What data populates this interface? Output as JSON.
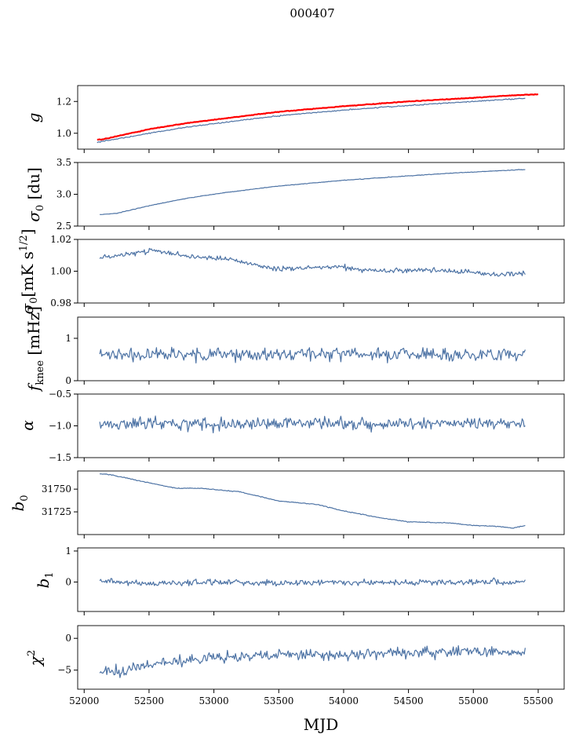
{
  "figure": {
    "title": "000407"
  },
  "colors": {
    "series": "#4c72a4",
    "fit": "#ff0000"
  },
  "chart_data": [
    {
      "type": "line",
      "ylabel": "g",
      "xlim": [
        51950,
        55700
      ],
      "ylim": [
        0.9,
        1.3
      ],
      "yticks": [
        1.0,
        1.2
      ],
      "ytick_labels": [
        "1.0",
        "1.2"
      ],
      "xtick_labels_shown": false,
      "series": [
        {
          "x": [
            52100,
            52150,
            52300,
            52500,
            52800,
            53100,
            53500,
            54000,
            54500,
            54900,
            55300,
            55400
          ],
          "y": [
            0.94,
            0.952,
            0.97,
            1.0,
            1.04,
            1.07,
            1.11,
            1.145,
            1.175,
            1.195,
            1.215,
            1.22
          ]
        },
        {
          "name": "",
          "color": "fit",
          "x": [
            52100,
            52150,
            52300,
            52500,
            52800,
            53100,
            53500,
            54000,
            54500,
            54900,
            55300,
            55500
          ],
          "y": [
            0.96,
            0.962,
            0.99,
            1.025,
            1.065,
            1.095,
            1.135,
            1.17,
            1.2,
            1.218,
            1.238,
            1.245
          ]
        }
      ]
    },
    {
      "type": "line",
      "ylabel": "σ₀ [du]",
      "xlim": [
        51950,
        55700
      ],
      "ylim": [
        2.5,
        3.5
      ],
      "yticks": [
        2.5,
        3.0,
        3.5
      ],
      "ytick_labels": [
        "2.5",
        "3.0",
        "3.5"
      ],
      "xtick_labels_shown": false,
      "series": [
        {
          "x": [
            52120,
            52250,
            52500,
            52800,
            53100,
            53500,
            54000,
            54500,
            54900,
            55400
          ],
          "y": [
            2.68,
            2.7,
            2.82,
            2.94,
            3.03,
            3.13,
            3.22,
            3.29,
            3.34,
            3.39
          ]
        }
      ]
    },
    {
      "type": "line",
      "ylabel": "σ₀[mK s^1/2]",
      "xlim": [
        51950,
        55700
      ],
      "ylim": [
        0.98,
        1.02
      ],
      "yticks": [
        0.98,
        1.0,
        1.02
      ],
      "ytick_labels": [
        "0.98",
        "1.00",
        "1.02"
      ],
      "xtick_labels_shown": false,
      "series": [
        {
          "x": [
            52120,
            52300,
            52550,
            52800,
            53100,
            53500,
            53900,
            54300,
            54700,
            55000,
            55200,
            55400
          ],
          "y": [
            1.008,
            1.011,
            1.013,
            1.009,
            1.008,
            1.001,
            1.003,
            1.0,
            1.001,
            0.999,
            0.998,
            0.999
          ]
        }
      ]
    },
    {
      "type": "line",
      "ylabel": "f_knee [mHz]",
      "xlim": [
        51950,
        55700
      ],
      "ylim": [
        0,
        1.5
      ],
      "yticks": [
        0,
        1
      ],
      "ytick_labels": [
        "0",
        "1"
      ],
      "xtick_labels_shown": false,
      "series": [
        {
          "x": [
            52120,
            52500,
            53000,
            53500,
            54000,
            54500,
            55000,
            55400
          ],
          "y": [
            0.6,
            0.62,
            0.6,
            0.63,
            0.62,
            0.64,
            0.62,
            0.63
          ]
        }
      ]
    },
    {
      "type": "line",
      "ylabel": "α",
      "xlim": [
        51950,
        55700
      ],
      "ylim": [
        -1.5,
        -0.5
      ],
      "yticks": [
        -1.5,
        -1.0,
        -0.5
      ],
      "ytick_labels": [
        "−1.5",
        "−1.0",
        "−0.5"
      ],
      "xtick_labels_shown": false,
      "series": [
        {
          "x": [
            52120,
            52500,
            53000,
            53500,
            54000,
            54500,
            55000,
            55400
          ],
          "y": [
            -0.98,
            -0.96,
            -0.97,
            -0.95,
            -0.96,
            -0.97,
            -0.96,
            -0.97
          ]
        }
      ]
    },
    {
      "type": "line",
      "ylabel": "b₀",
      "xlim": [
        51950,
        55700
      ],
      "ylim": [
        31700,
        31770
      ],
      "yticks": [
        31725,
        31750
      ],
      "ytick_labels": [
        "31725",
        "31750"
      ],
      "xtick_labels_shown": false,
      "series": [
        {
          "x": [
            52120,
            52200,
            52400,
            52700,
            52900,
            53200,
            53500,
            53800,
            54000,
            54300,
            54500,
            54800,
            55000,
            55200,
            55300,
            55400
          ],
          "y": [
            31767,
            31766,
            31760,
            31751,
            31751,
            31747,
            31737,
            31733,
            31726,
            31718,
            31714,
            31713,
            31710,
            31709,
            31707,
            31710
          ]
        }
      ]
    },
    {
      "type": "line",
      "ylabel": "b₁",
      "xlim": [
        51950,
        55700
      ],
      "ylim": [
        -0.95,
        1.1
      ],
      "yticks": [
        0,
        1
      ],
      "ytick_labels": [
        "0",
        "1"
      ],
      "xtick_labels_shown": false,
      "series": [
        {
          "x": [
            52120,
            52500,
            53000,
            53500,
            54000,
            54500,
            55000,
            55400
          ],
          "y": [
            0.05,
            -0.05,
            0.0,
            -0.03,
            0.0,
            -0.02,
            0.0,
            0.0
          ]
        }
      ]
    },
    {
      "type": "line",
      "ylabel": "χ²",
      "xlabel": "MJD",
      "xlim": [
        51950,
        55700
      ],
      "ylim": [
        -8,
        2
      ],
      "yticks": [
        -5,
        0
      ],
      "ytick_labels": [
        "−5",
        "0"
      ],
      "xticks": [
        52000,
        52500,
        53000,
        53500,
        54000,
        54500,
        55000,
        55500
      ],
      "xtick_labels": [
        "52000",
        "52500",
        "53000",
        "53500",
        "54000",
        "54500",
        "55000",
        "55500"
      ],
      "xtick_labels_shown": true,
      "series": [
        {
          "x": [
            52120,
            52300,
            52600,
            53000,
            53500,
            54000,
            54500,
            55000,
            55400
          ],
          "y": [
            -5.5,
            -5.0,
            -3.8,
            -3.0,
            -2.7,
            -2.6,
            -2.3,
            -2.0,
            -2.2
          ]
        }
      ]
    }
  ]
}
